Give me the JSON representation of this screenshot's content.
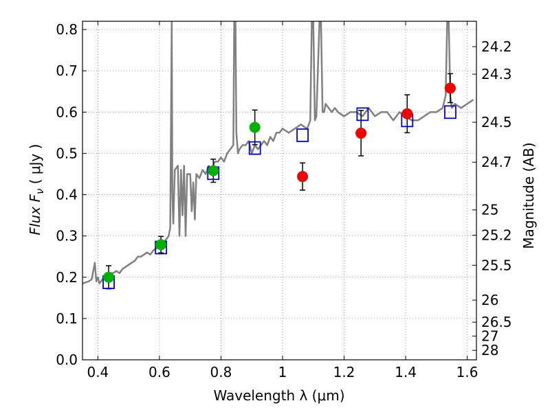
{
  "chart_data": {
    "type": "scatter",
    "xlabel": "Wavelength  λ (μm)",
    "ylabel": "Flux  F",
    "ylabel_sub": "ν",
    "ylabel_unit": " ( μJy )",
    "y2label": "Magnitude (AB)",
    "xlim": [
      0.35,
      1.63
    ],
    "ylim": [
      0.0,
      0.82
    ],
    "grid": true,
    "x_ticks": [
      {
        "v": 0.4,
        "label": "0.4"
      },
      {
        "v": 0.6,
        "label": "0.6"
      },
      {
        "v": 0.8,
        "label": "0.8"
      },
      {
        "v": 1.0,
        "label": "1"
      },
      {
        "v": 1.2,
        "label": "1.2"
      },
      {
        "v": 1.4,
        "label": "1.4"
      },
      {
        "v": 1.6,
        "label": "1.6"
      }
    ],
    "y_ticks": [
      {
        "v": 0.0,
        "label": "0.0"
      },
      {
        "v": 0.1,
        "label": "0.1"
      },
      {
        "v": 0.2,
        "label": "0.2"
      },
      {
        "v": 0.3,
        "label": "0.3"
      },
      {
        "v": 0.4,
        "label": "0.4"
      },
      {
        "v": 0.5,
        "label": "0.5"
      },
      {
        "v": 0.6,
        "label": "0.6"
      },
      {
        "v": 0.7,
        "label": "0.7"
      },
      {
        "v": 0.8,
        "label": "0.8"
      }
    ],
    "mag_ticks": [
      {
        "label": "24.2",
        "mag": 24.2
      },
      {
        "label": "24.3",
        "mag": 24.3
      },
      {
        "label": "24.5",
        "mag": 24.5
      },
      {
        "label": "24.7",
        "mag": 24.7
      },
      {
        "label": "25",
        "mag": 25.0
      },
      {
        "label": "25.2",
        "mag": 25.2
      },
      {
        "label": "25.5",
        "mag": 25.5
      },
      {
        "label": "26",
        "mag": 26.0
      },
      {
        "label": "26.5",
        "mag": 26.5
      },
      {
        "label": "27",
        "mag": 27.0
      },
      {
        "label": "28",
        "mag": 28.0
      }
    ],
    "colors": {
      "model": "#808080",
      "green": "#00b000",
      "red": "#ee0000",
      "square": "#0000cc",
      "errorbar": "#000000",
      "grid": "#808080"
    },
    "model_spectrum": {
      "x": [
        0.35,
        0.37,
        0.38,
        0.39,
        0.395,
        0.4,
        0.405,
        0.41,
        0.42,
        0.43,
        0.44,
        0.45,
        0.46,
        0.47,
        0.48,
        0.49,
        0.5,
        0.51,
        0.52,
        0.53,
        0.54,
        0.55,
        0.56,
        0.57,
        0.58,
        0.59,
        0.6,
        0.61,
        0.62,
        0.63,
        0.635,
        0.64,
        0.642,
        0.645,
        0.65,
        0.66,
        0.665,
        0.67,
        0.675,
        0.68,
        0.685,
        0.69,
        0.7,
        0.705,
        0.71,
        0.715,
        0.72,
        0.73,
        0.74,
        0.75,
        0.76,
        0.77,
        0.78,
        0.79,
        0.8,
        0.81,
        0.82,
        0.83,
        0.84,
        0.843,
        0.847,
        0.85,
        0.855,
        0.86,
        0.87,
        0.88,
        0.89,
        0.9,
        0.91,
        0.92,
        0.93,
        0.94,
        0.95,
        0.96,
        0.97,
        0.98,
        0.99,
        1.0,
        1.02,
        1.04,
        1.06,
        1.08,
        1.09,
        1.095,
        1.1,
        1.105,
        1.11,
        1.12,
        1.125,
        1.13,
        1.135,
        1.14,
        1.15,
        1.16,
        1.17,
        1.18,
        1.2,
        1.22,
        1.24,
        1.26,
        1.28,
        1.3,
        1.32,
        1.34,
        1.36,
        1.38,
        1.4,
        1.42,
        1.44,
        1.46,
        1.48,
        1.5,
        1.52,
        1.53,
        1.535,
        1.54,
        1.545,
        1.55,
        1.56,
        1.58,
        1.6,
        1.62
      ],
      "y": [
        0.185,
        0.19,
        0.195,
        0.235,
        0.19,
        0.2,
        0.185,
        0.19,
        0.2,
        0.205,
        0.21,
        0.21,
        0.215,
        0.21,
        0.22,
        0.225,
        0.23,
        0.235,
        0.24,
        0.25,
        0.25,
        0.255,
        0.26,
        0.255,
        0.265,
        0.27,
        0.275,
        0.28,
        0.29,
        0.3,
        0.32,
        0.82,
        0.4,
        0.33,
        0.46,
        0.47,
        0.3,
        0.46,
        0.35,
        0.47,
        0.3,
        0.45,
        0.45,
        0.36,
        0.43,
        0.34,
        0.45,
        0.44,
        0.46,
        0.45,
        0.47,
        0.46,
        0.48,
        0.48,
        0.49,
        0.48,
        0.5,
        0.51,
        0.52,
        0.82,
        0.82,
        0.55,
        0.5,
        0.51,
        0.52,
        0.52,
        0.53,
        0.5,
        0.52,
        0.51,
        0.52,
        0.53,
        0.52,
        0.54,
        0.53,
        0.55,
        0.55,
        0.56,
        0.55,
        0.56,
        0.57,
        0.56,
        0.58,
        0.82,
        0.82,
        0.58,
        0.59,
        0.82,
        0.82,
        0.6,
        0.6,
        0.62,
        0.61,
        0.6,
        0.61,
        0.6,
        0.59,
        0.6,
        0.6,
        0.59,
        0.61,
        0.59,
        0.6,
        0.6,
        0.58,
        0.6,
        0.59,
        0.58,
        0.58,
        0.59,
        0.6,
        0.6,
        0.61,
        0.64,
        0.82,
        0.82,
        0.64,
        0.61,
        0.62,
        0.61,
        0.62,
        0.63
      ]
    },
    "green_points": [
      {
        "x": 0.435,
        "y": 0.2,
        "err": 0.028
      },
      {
        "x": 0.605,
        "y": 0.279,
        "err": 0.02
      },
      {
        "x": 0.775,
        "y": 0.458,
        "err": 0.028
      },
      {
        "x": 0.91,
        "y": 0.563,
        "err": 0.042
      }
    ],
    "red_points": [
      {
        "x": 1.065,
        "y": 0.444,
        "err": 0.033
      },
      {
        "x": 1.255,
        "y": 0.549,
        "err": 0.055
      },
      {
        "x": 1.405,
        "y": 0.596,
        "err": 0.046
      },
      {
        "x": 1.545,
        "y": 0.658,
        "err": 0.035
      }
    ],
    "model_squares": [
      {
        "x": 0.435,
        "y": 0.188
      },
      {
        "x": 0.605,
        "y": 0.272
      },
      {
        "x": 0.775,
        "y": 0.452
      },
      {
        "x": 0.91,
        "y": 0.513
      },
      {
        "x": 1.065,
        "y": 0.544
      },
      {
        "x": 1.26,
        "y": 0.595
      },
      {
        "x": 1.405,
        "y": 0.58
      },
      {
        "x": 1.545,
        "y": 0.6
      }
    ]
  }
}
